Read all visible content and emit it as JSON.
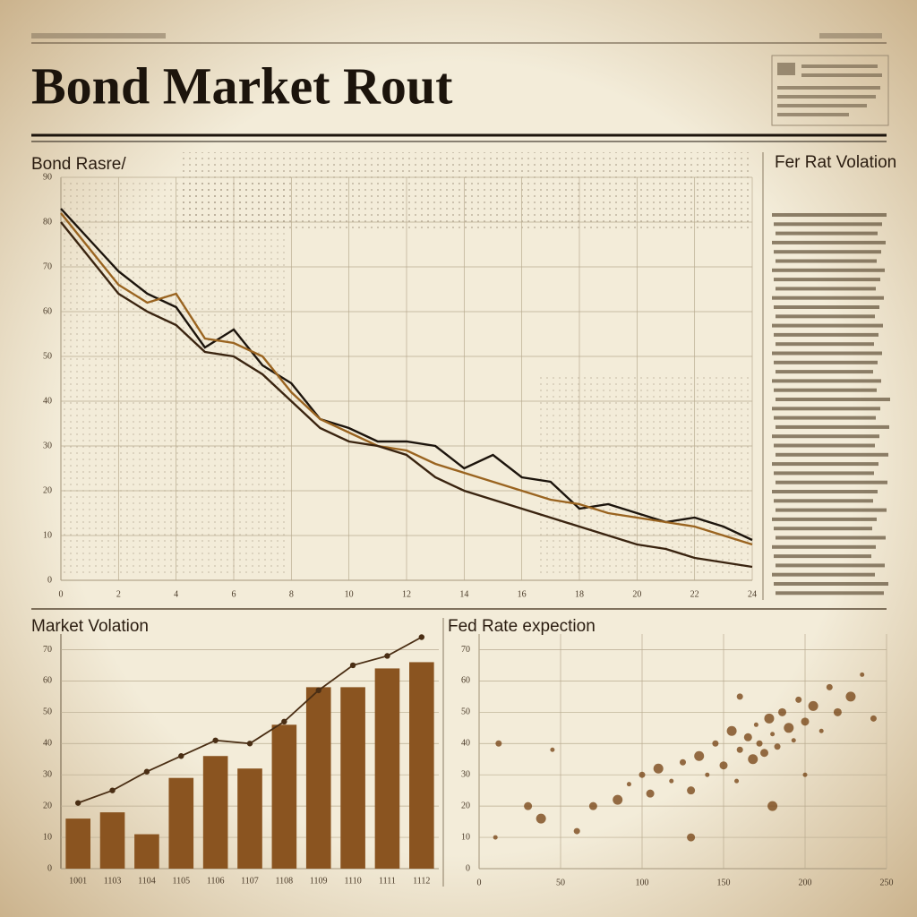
{
  "header": {
    "title": "Bond Market Rout"
  },
  "sidebar": {
    "title": "Fer Rat Volation"
  },
  "chart_data": [
    {
      "type": "line",
      "title": "Bond Rasre/",
      "x": [
        0,
        1,
        2,
        3,
        4,
        5,
        6,
        7,
        8,
        9,
        10,
        11,
        12,
        13,
        14,
        15,
        16,
        17,
        18,
        19,
        20,
        21,
        22,
        23,
        24
      ],
      "xlim": [
        0,
        24
      ],
      "xticks": [
        0,
        2,
        4,
        6,
        8,
        10,
        12,
        14,
        16,
        18,
        20,
        22,
        24
      ],
      "ylim": [
        0,
        90
      ],
      "yticks": [
        0,
        10,
        20,
        30,
        40,
        50,
        60,
        70,
        80,
        90
      ],
      "grid": true,
      "series": [
        {
          "color": "#1c140c",
          "values": [
            83,
            76,
            69,
            64,
            61,
            52,
            56,
            48,
            44,
            36,
            34,
            31,
            31,
            30,
            25,
            28,
            23,
            22,
            16,
            17,
            15,
            13,
            14,
            12,
            9
          ]
        },
        {
          "color": "#9a6420",
          "values": [
            82,
            74,
            66,
            62,
            64,
            54,
            53,
            50,
            42,
            36,
            33,
            30,
            29,
            26,
            24,
            22,
            20,
            18,
            17,
            15,
            14,
            13,
            12,
            10,
            8
          ]
        },
        {
          "color": "#3a2410",
          "values": [
            80,
            72,
            64,
            60,
            57,
            51,
            50,
            46,
            40,
            34,
            31,
            30,
            28,
            23,
            20,
            18,
            16,
            14,
            12,
            10,
            8,
            7,
            5,
            4,
            3
          ]
        }
      ]
    },
    {
      "type": "bar",
      "title": "Market Volation",
      "categories": [
        "1001",
        "1103",
        "1104",
        "1105",
        "1106",
        "1107",
        "1108",
        "1109",
        "1110",
        "1111",
        "1112"
      ],
      "ylim": [
        0,
        75
      ],
      "yticks": [
        0,
        10,
        20,
        30,
        40,
        50,
        60,
        70
      ],
      "grid": true,
      "series": [
        {
          "type": "bar",
          "color": "#8a5420",
          "values": [
            16,
            18,
            11,
            29,
            36,
            32,
            46,
            58,
            58,
            64,
            66
          ]
        },
        {
          "type": "line",
          "color": "#4a2e14",
          "values": [
            21,
            25,
            31,
            36,
            41,
            40,
            47,
            57,
            65,
            68,
            74
          ]
        }
      ]
    },
    {
      "type": "scatter",
      "title": "Fed Rate expection",
      "xlim": [
        0,
        250
      ],
      "xticks": [
        0,
        50,
        100,
        150,
        200,
        250
      ],
      "ylim": [
        0,
        75
      ],
      "yticks": [
        0,
        10,
        20,
        30,
        40,
        50,
        60,
        70
      ],
      "grid": true,
      "color": "#7a4a1c",
      "x": [
        10,
        12,
        30,
        38,
        45,
        60,
        70,
        85,
        92,
        100,
        105,
        110,
        118,
        125,
        130,
        135,
        140,
        145,
        150,
        155,
        158,
        160,
        165,
        168,
        170,
        172,
        175,
        178,
        180,
        183,
        186,
        190,
        193,
        196,
        200,
        205,
        210,
        215,
        220,
        228,
        235,
        242,
        130,
        180,
        200,
        160
      ],
      "values": [
        10,
        40,
        20,
        16,
        38,
        12,
        20,
        22,
        27,
        30,
        24,
        32,
        28,
        34,
        25,
        36,
        30,
        40,
        33,
        44,
        28,
        38,
        42,
        35,
        46,
        40,
        37,
        48,
        43,
        39,
        50,
        45,
        41,
        54,
        47,
        52,
        44,
        58,
        50,
        55,
        62,
        48,
        10,
        20,
        30,
        55
      ]
    }
  ]
}
